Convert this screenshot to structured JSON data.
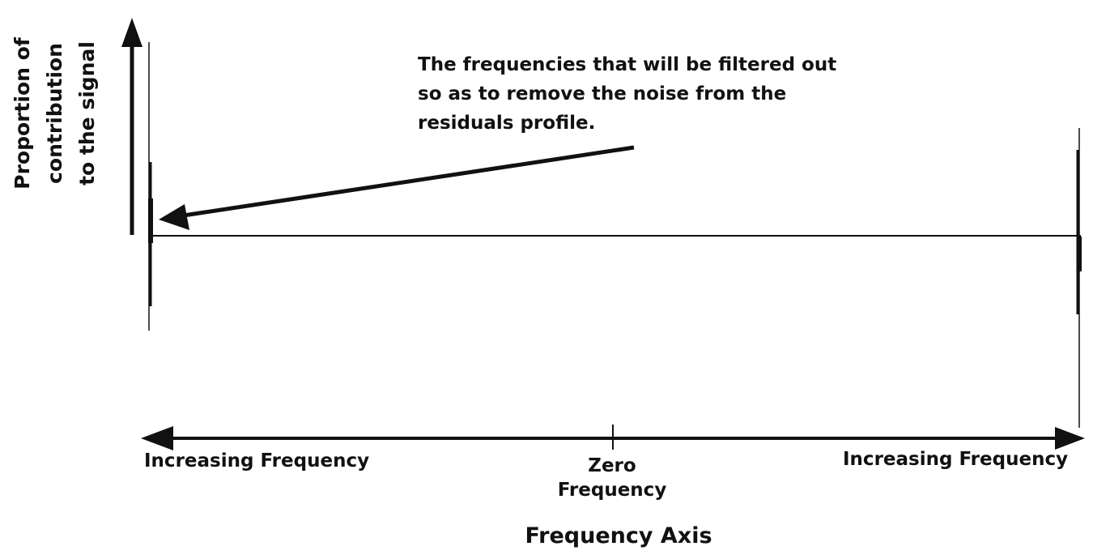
{
  "colors": {
    "ink": "#111111",
    "background": "#ffffff"
  },
  "y_axis": {
    "label_lines": [
      "Proportion of",
      "contribution",
      "to the signal"
    ]
  },
  "x_axis": {
    "title": "Frequency Axis",
    "left_label": "Increasing Frequency",
    "center_label_lines": [
      "Zero",
      "Frequency"
    ],
    "right_label": "Increasing Frequency"
  },
  "annotation": {
    "lines": [
      "The frequencies that will be filtered out",
      "so as to remove the noise from the",
      "residuals profile."
    ],
    "arrow_target": "left-spike"
  },
  "icons": {
    "y_axis_arrow": "arrow-up-icon",
    "x_axis_arrow_left": "arrow-left-icon",
    "x_axis_arrow_right": "arrow-right-icon",
    "annotation_arrow": "pointer-arrow-icon"
  }
}
